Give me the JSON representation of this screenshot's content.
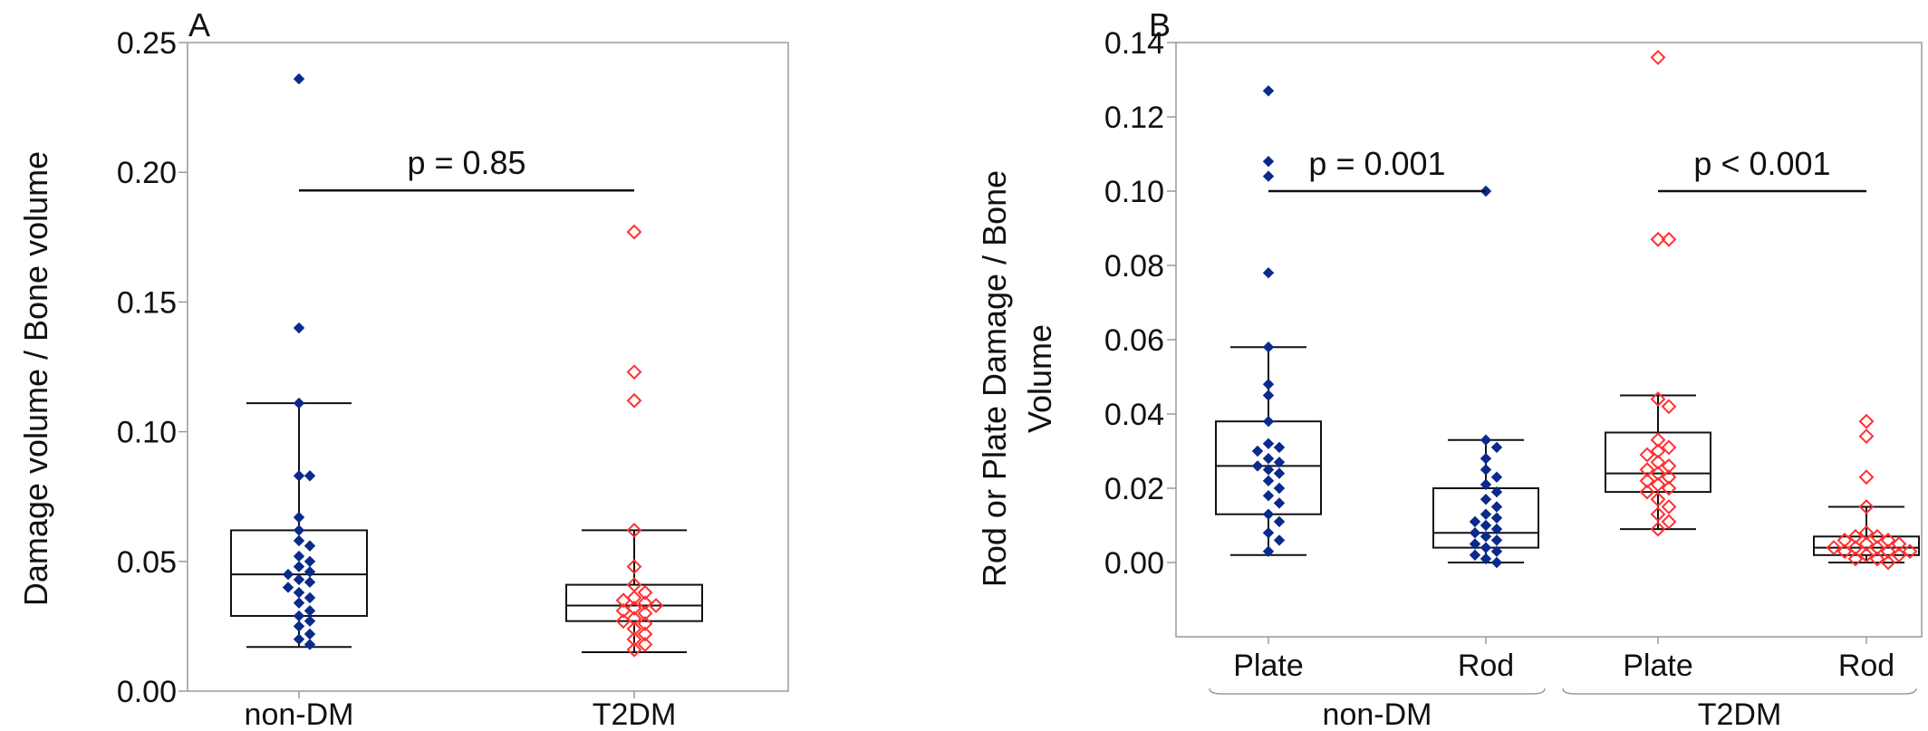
{
  "colors": {
    "non_dm": "#0a2a8c",
    "t2dm": "#ff3030",
    "line": "#111111",
    "frame": "#9a9a9a"
  },
  "chart_data": [
    {
      "panel": "A",
      "type": "box-scatter",
      "ylabel": "Damage volume / Bone volume",
      "ylim": [
        0.0,
        0.25
      ],
      "yticks": [
        "0.00",
        "0.05",
        "0.10",
        "0.15",
        "0.20",
        "0.25"
      ],
      "yticks_val": [
        0.0,
        0.05,
        0.1,
        0.15,
        0.2,
        0.25
      ],
      "categories": [
        "non-DM",
        "T2DM"
      ],
      "boxes": [
        {
          "category": "non-DM",
          "group": "non-DM",
          "whisker_low": 0.017,
          "q1": 0.029,
          "median": 0.045,
          "q3": 0.062,
          "whisker_high": 0.111
        },
        {
          "category": "T2DM",
          "group": "T2DM",
          "whisker_low": 0.015,
          "q1": 0.027,
          "median": 0.033,
          "q3": 0.041,
          "whisker_high": 0.062
        }
      ],
      "points": [
        {
          "category": "non-DM",
          "group": "non-DM",
          "values": [
            0.236,
            0.14,
            0.111,
            0.083,
            0.083,
            0.067,
            0.062,
            0.058,
            0.056,
            0.052,
            0.05,
            0.048,
            0.046,
            0.045,
            0.043,
            0.042,
            0.04,
            0.038,
            0.036,
            0.034,
            0.031,
            0.029,
            0.027,
            0.025,
            0.022,
            0.02,
            0.018
          ]
        },
        {
          "category": "T2DM",
          "group": "T2DM",
          "values": [
            0.177,
            0.123,
            0.112,
            0.062,
            0.048,
            0.041,
            0.038,
            0.036,
            0.035,
            0.034,
            0.033,
            0.032,
            0.031,
            0.03,
            0.028,
            0.027,
            0.026,
            0.024,
            0.022,
            0.02,
            0.018,
            0.016
          ]
        }
      ],
      "annotations": [
        {
          "text": "p = 0.85",
          "from": 0,
          "to": 1,
          "y": 0.193
        }
      ]
    },
    {
      "panel": "B",
      "type": "box-scatter",
      "ylabel": "Rod or Plate Damage / Bone Volume",
      "ylabel_lines": [
        "Rod or Plate Damage / Bone",
        "Volume"
      ],
      "ylim": [
        -0.02,
        0.14
      ],
      "yticks": [
        "0.00",
        "0.02",
        "0.04",
        "0.06",
        "0.08",
        "0.10",
        "0.12",
        "0.14"
      ],
      "yticks_val": [
        0.0,
        0.02,
        0.04,
        0.06,
        0.08,
        0.1,
        0.12,
        0.14
      ],
      "categories": [
        "Plate",
        "Rod",
        "Plate",
        "Rod"
      ],
      "groups": [
        "non-DM",
        "T2DM"
      ],
      "boxes": [
        {
          "category": "Plate",
          "group": "non-DM",
          "whisker_low": 0.002,
          "q1": 0.013,
          "median": 0.026,
          "q3": 0.038,
          "whisker_high": 0.058
        },
        {
          "category": "Rod",
          "group": "non-DM",
          "whisker_low": 0.0,
          "q1": 0.004,
          "median": 0.008,
          "q3": 0.02,
          "whisker_high": 0.033
        },
        {
          "category": "Plate",
          "group": "T2DM",
          "whisker_low": 0.009,
          "q1": 0.019,
          "median": 0.024,
          "q3": 0.035,
          "whisker_high": 0.045
        },
        {
          "category": "Rod",
          "group": "T2DM",
          "whisker_low": 0.0,
          "q1": 0.002,
          "median": 0.004,
          "q3": 0.007,
          "whisker_high": 0.015
        }
      ],
      "points": [
        {
          "category": "Plate",
          "group": "non-DM",
          "values": [
            0.127,
            0.108,
            0.104,
            0.078,
            0.058,
            0.048,
            0.045,
            0.038,
            0.032,
            0.031,
            0.03,
            0.028,
            0.027,
            0.026,
            0.025,
            0.024,
            0.022,
            0.02,
            0.018,
            0.016,
            0.013,
            0.011,
            0.008,
            0.006,
            0.003
          ]
        },
        {
          "category": "Rod",
          "group": "non-DM",
          "values": [
            0.1,
            0.033,
            0.031,
            0.028,
            0.025,
            0.023,
            0.021,
            0.019,
            0.017,
            0.015,
            0.013,
            0.012,
            0.011,
            0.01,
            0.009,
            0.008,
            0.007,
            0.006,
            0.005,
            0.004,
            0.003,
            0.002,
            0.001,
            0.0
          ]
        },
        {
          "category": "Plate",
          "group": "T2DM",
          "values": [
            0.136,
            0.087,
            0.087,
            0.044,
            0.042,
            0.033,
            0.031,
            0.03,
            0.029,
            0.027,
            0.026,
            0.025,
            0.024,
            0.023,
            0.022,
            0.021,
            0.02,
            0.019,
            0.017,
            0.015,
            0.013,
            0.011,
            0.009
          ]
        },
        {
          "category": "Rod",
          "group": "T2DM",
          "values": [
            0.038,
            0.034,
            0.023,
            0.015,
            0.008,
            0.007,
            0.007,
            0.006,
            0.006,
            0.005,
            0.005,
            0.004,
            0.004,
            0.004,
            0.003,
            0.003,
            0.003,
            0.002,
            0.002,
            0.001,
            0.001,
            0.0
          ]
        }
      ],
      "annotations": [
        {
          "text": "p = 0.001",
          "from": 0,
          "to": 1,
          "y": 0.1
        },
        {
          "text": "p < 0.001",
          "from": 2,
          "to": 3,
          "y": 0.1
        }
      ]
    }
  ]
}
